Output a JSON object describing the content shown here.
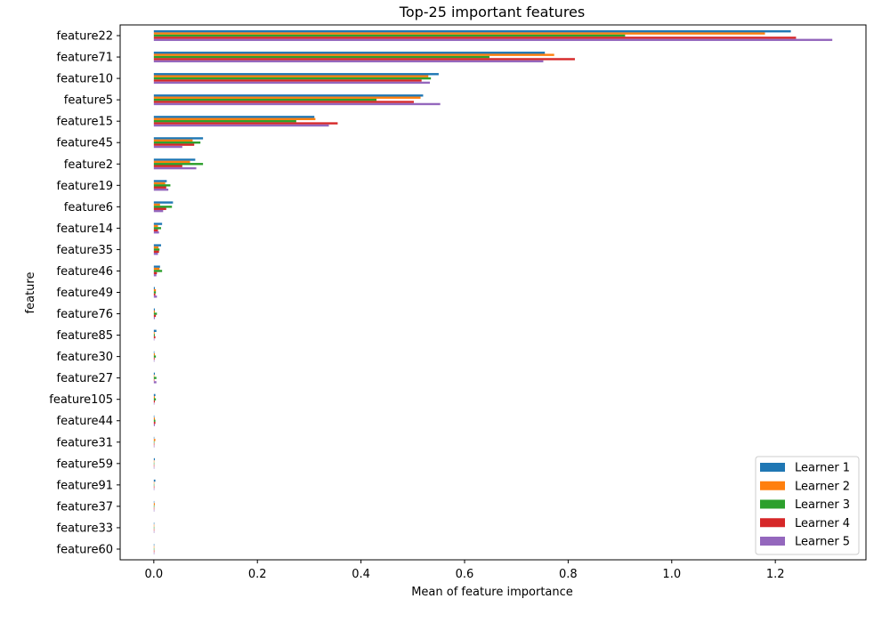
{
  "chart_data": {
    "type": "bar",
    "orientation": "horizontal",
    "title": "Top-25 important features",
    "xlabel": "Mean of feature importance",
    "ylabel": "feature",
    "xlim": [
      -0.065,
      1.375
    ],
    "x_ticks": [
      0.0,
      0.2,
      0.4,
      0.6,
      0.8,
      1.0,
      1.2
    ],
    "x_tick_labels": [
      "0.0",
      "0.2",
      "0.4",
      "0.6",
      "0.8",
      "1.0",
      "1.2"
    ],
    "legend_position": "lower-right",
    "grid": false,
    "categories": [
      "feature22",
      "feature71",
      "feature10",
      "feature5",
      "feature15",
      "feature45",
      "feature2",
      "feature19",
      "feature6",
      "feature14",
      "feature35",
      "feature46",
      "feature49",
      "feature76",
      "feature85",
      "feature30",
      "feature27",
      "feature105",
      "feature44",
      "feature31",
      "feature59",
      "feature91",
      "feature37",
      "feature33",
      "feature60"
    ],
    "series": [
      {
        "name": "Learner 1",
        "color": "#1f77b4",
        "values": [
          1.23,
          0.755,
          0.55,
          0.52,
          0.31,
          0.095,
          0.08,
          0.025,
          0.037,
          0.016,
          0.014,
          0.012,
          0.002,
          0.002,
          0.005,
          0.001,
          0.002,
          0.003,
          0.001,
          0.0005,
          0.002,
          0.003,
          0.0005,
          0.0005,
          0.0005
        ]
      },
      {
        "name": "Learner 2",
        "color": "#ff7f0e",
        "values": [
          1.18,
          0.773,
          0.53,
          0.515,
          0.312,
          0.075,
          0.07,
          0.022,
          0.012,
          0.008,
          0.009,
          0.011,
          0.004,
          0.002,
          0.0015,
          0.002,
          0.001,
          0.002,
          0.002,
          0.003,
          0.0005,
          0.0005,
          0.002,
          0.0005,
          0.0005
        ]
      },
      {
        "name": "Learner 3",
        "color": "#2ca02c",
        "values": [
          0.91,
          0.648,
          0.535,
          0.43,
          0.275,
          0.09,
          0.095,
          0.032,
          0.035,
          0.014,
          0.011,
          0.016,
          0.004,
          0.006,
          0.002,
          0.004,
          0.005,
          0.004,
          0.003,
          0.001,
          0.0005,
          0.0005,
          0.001,
          0.0005,
          0.0005
        ]
      },
      {
        "name": "Learner 4",
        "color": "#d62728",
        "values": [
          1.24,
          0.813,
          0.517,
          0.502,
          0.355,
          0.078,
          0.055,
          0.024,
          0.024,
          0.008,
          0.01,
          0.006,
          0.003,
          0.004,
          0.003,
          0.0015,
          0.001,
          0.002,
          0.003,
          0.001,
          0.0005,
          0.001,
          0.0005,
          0.0005,
          0.001
        ]
      },
      {
        "name": "Learner 5",
        "color": "#9467bd",
        "values": [
          1.31,
          0.752,
          0.533,
          0.553,
          0.338,
          0.055,
          0.082,
          0.028,
          0.018,
          0.01,
          0.008,
          0.005,
          0.006,
          0.002,
          0.001,
          0.001,
          0.005,
          0.001,
          0.002,
          0.001,
          0.0005,
          0.0005,
          0.0005,
          0.0005,
          0.0005
        ]
      }
    ]
  }
}
